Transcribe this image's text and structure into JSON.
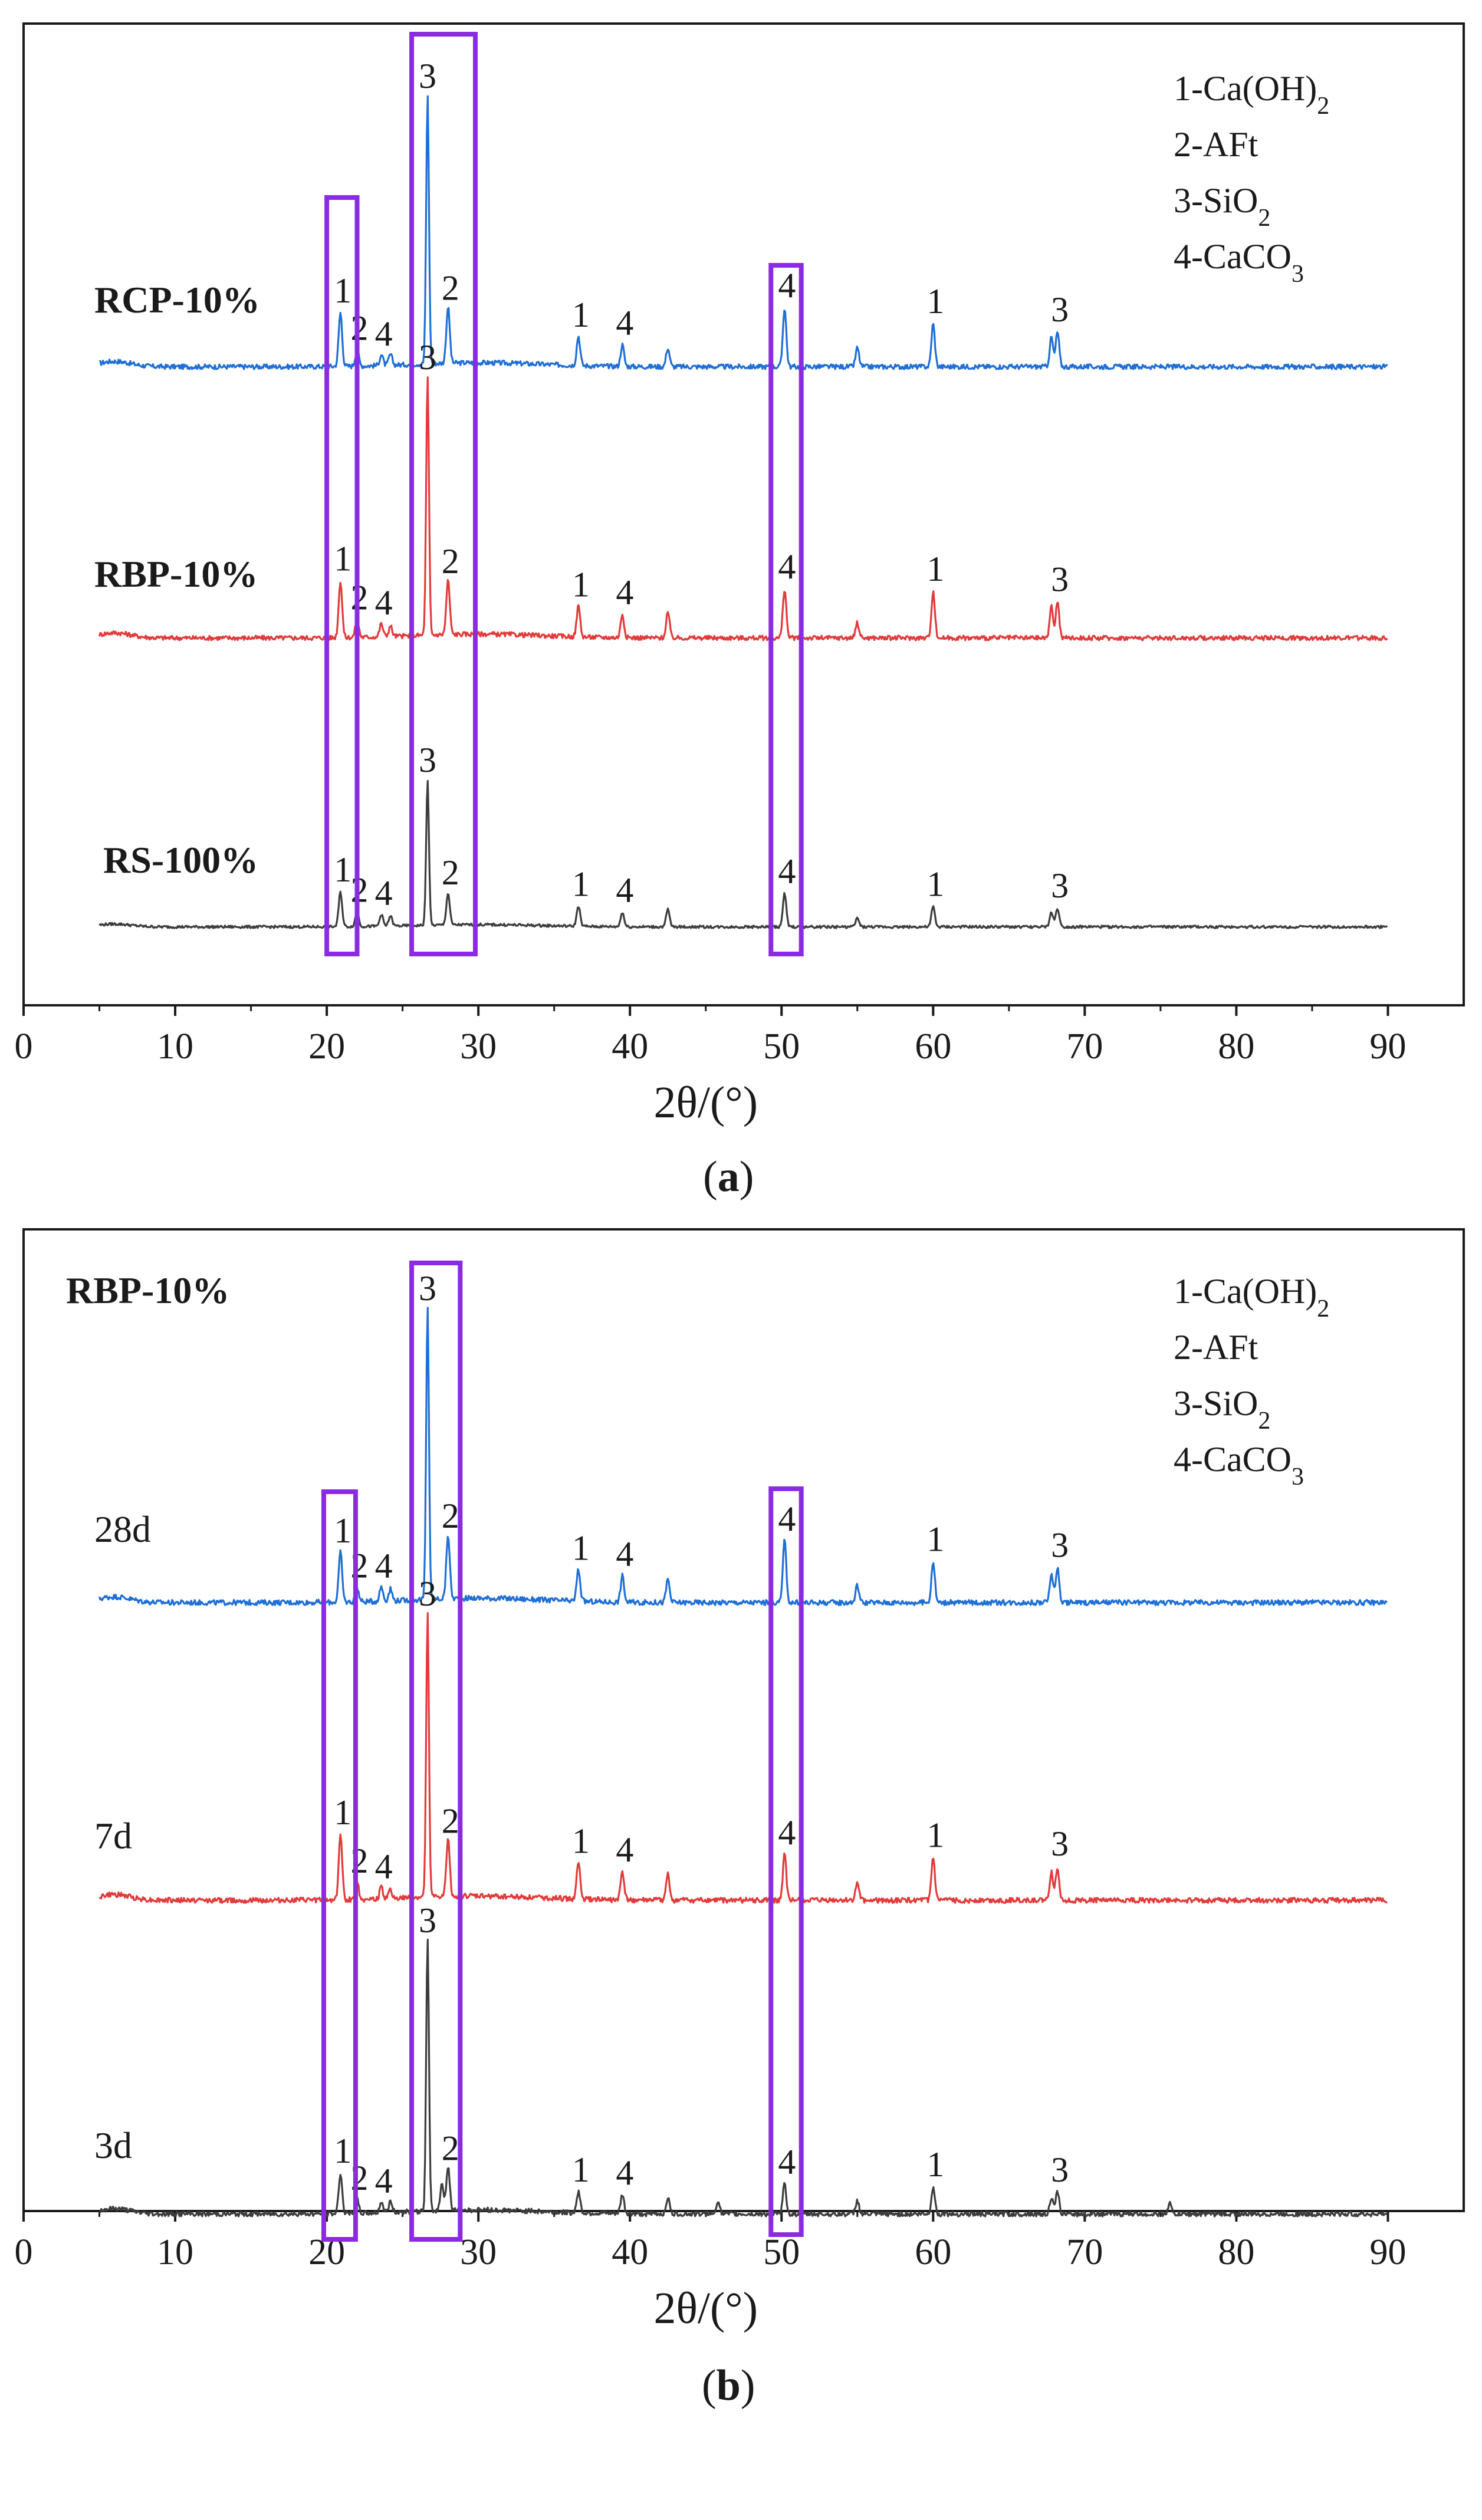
{
  "chart_data": [
    {
      "panel": "a",
      "type": "line",
      "caption_open": "(",
      "caption_letter": "a",
      "caption_close": ")",
      "xlabel": "2θ/(°)",
      "xlim": [
        0,
        95
      ],
      "x_ticks": [
        0,
        10,
        20,
        30,
        40,
        50,
        60,
        70,
        80,
        90
      ],
      "grid": false,
      "legend": [
        "1-Ca(OH)₂",
        "2-AFt",
        "3-SiO₂",
        "4-CaCO₃"
      ],
      "highlight_regions": [
        [
          20.0,
          22.0
        ],
        [
          25.6,
          29.8
        ],
        [
          49.3,
          51.3
        ]
      ],
      "series": [
        {
          "name": "RCP-10%",
          "color": "#1f6fd6",
          "bold": true,
          "peaks": [
            {
              "x": 20.9,
              "h": 0.2,
              "label": "1"
            },
            {
              "x": 22.0,
              "h": 0.06,
              "label": "2"
            },
            {
              "x": 23.6,
              "h": 0.04,
              "label": "4"
            },
            {
              "x": 24.2,
              "h": 0.04,
              "label": ""
            },
            {
              "x": 26.65,
              "h": 1.0,
              "label": "3"
            },
            {
              "x": 28.0,
              "h": 0.21,
              "label": "2"
            },
            {
              "x": 36.6,
              "h": 0.11,
              "label": "1"
            },
            {
              "x": 39.5,
              "h": 0.08,
              "label": "4"
            },
            {
              "x": 42.5,
              "h": 0.07,
              "label": ""
            },
            {
              "x": 50.2,
              "h": 0.22,
              "label": "4"
            },
            {
              "x": 55.0,
              "h": 0.07,
              "label": ""
            },
            {
              "x": 60.0,
              "h": 0.16,
              "label": "1"
            },
            {
              "x": 67.8,
              "h": 0.11,
              "label": ""
            },
            {
              "x": 68.2,
              "h": 0.13,
              "label": "3"
            }
          ]
        },
        {
          "name": "RBP-10%",
          "color": "#e23b3b",
          "bold": true,
          "peaks": [
            {
              "x": 20.9,
              "h": 0.22,
              "label": "1"
            },
            {
              "x": 22.0,
              "h": 0.07,
              "label": "2"
            },
            {
              "x": 23.6,
              "h": 0.05,
              "label": "4"
            },
            {
              "x": 24.2,
              "h": 0.04,
              "label": ""
            },
            {
              "x": 26.65,
              "h": 1.0,
              "label": "3"
            },
            {
              "x": 28.0,
              "h": 0.21,
              "label": "2"
            },
            {
              "x": 36.6,
              "h": 0.12,
              "label": "1"
            },
            {
              "x": 39.5,
              "h": 0.09,
              "label": "4"
            },
            {
              "x": 42.5,
              "h": 0.1,
              "label": ""
            },
            {
              "x": 50.2,
              "h": 0.19,
              "label": "4"
            },
            {
              "x": 55.0,
              "h": 0.06,
              "label": ""
            },
            {
              "x": 60.0,
              "h": 0.18,
              "label": "1"
            },
            {
              "x": 67.8,
              "h": 0.12,
              "label": ""
            },
            {
              "x": 68.2,
              "h": 0.14,
              "label": "3"
            }
          ]
        },
        {
          "name": "RS-100%",
          "color": "#3d3d3d",
          "bold": true,
          "peaks": [
            {
              "x": 20.9,
              "h": 0.24,
              "label": "1"
            },
            {
              "x": 22.0,
              "h": 0.1,
              "label": "2"
            },
            {
              "x": 23.6,
              "h": 0.08,
              "label": "4"
            },
            {
              "x": 24.2,
              "h": 0.07,
              "label": ""
            },
            {
              "x": 26.65,
              "h": 1.0,
              "label": "3"
            },
            {
              "x": 28.0,
              "h": 0.22,
              "label": "2"
            },
            {
              "x": 36.6,
              "h": 0.14,
              "label": "1"
            },
            {
              "x": 39.5,
              "h": 0.1,
              "label": "4"
            },
            {
              "x": 42.5,
              "h": 0.12,
              "label": ""
            },
            {
              "x": 50.2,
              "h": 0.23,
              "label": "4"
            },
            {
              "x": 55.0,
              "h": 0.06,
              "label": ""
            },
            {
              "x": 60.0,
              "h": 0.14,
              "label": "1"
            },
            {
              "x": 67.8,
              "h": 0.1,
              "label": ""
            },
            {
              "x": 68.2,
              "h": 0.13,
              "label": "3"
            }
          ]
        }
      ]
    },
    {
      "panel": "b",
      "type": "line",
      "caption_open": "(",
      "caption_letter": "b",
      "caption_close": ")",
      "xlabel": "2θ/(°)",
      "xlim": [
        0,
        95
      ],
      "x_ticks": [
        0,
        10,
        20,
        30,
        40,
        50,
        60,
        70,
        80,
        90
      ],
      "grid": false,
      "title": "RBP-10%",
      "legend": [
        "1-Ca(OH)₂",
        "2-AFt",
        "3-SiO₂",
        "4-CaCO₃"
      ],
      "highlight_regions": [
        [
          19.8,
          21.9
        ],
        [
          25.6,
          28.8
        ],
        [
          49.3,
          51.3
        ]
      ],
      "series": [
        {
          "name": "28d",
          "color": "#1f6fd6",
          "bold": false,
          "peaks": [
            {
              "x": 20.9,
              "h": 0.17,
              "label": "1"
            },
            {
              "x": 22.0,
              "h": 0.05,
              "label": "2"
            },
            {
              "x": 23.6,
              "h": 0.05,
              "label": "4"
            },
            {
              "x": 24.2,
              "h": 0.04,
              "label": ""
            },
            {
              "x": 26.65,
              "h": 1.0,
              "label": "3"
            },
            {
              "x": 28.0,
              "h": 0.22,
              "label": "2"
            },
            {
              "x": 36.6,
              "h": 0.11,
              "label": "1"
            },
            {
              "x": 39.5,
              "h": 0.09,
              "label": "4"
            },
            {
              "x": 42.5,
              "h": 0.08,
              "label": ""
            },
            {
              "x": 50.2,
              "h": 0.21,
              "label": "4"
            },
            {
              "x": 55.0,
              "h": 0.06,
              "label": ""
            },
            {
              "x": 60.0,
              "h": 0.14,
              "label": "1"
            },
            {
              "x": 67.8,
              "h": 0.1,
              "label": ""
            },
            {
              "x": 68.2,
              "h": 0.12,
              "label": "3"
            }
          ]
        },
        {
          "name": "7d",
          "color": "#e23b3b",
          "bold": false,
          "peaks": [
            {
              "x": 20.9,
              "h": 0.23,
              "label": "1"
            },
            {
              "x": 22.0,
              "h": 0.06,
              "label": "2"
            },
            {
              "x": 23.6,
              "h": 0.04,
              "label": "4"
            },
            {
              "x": 24.2,
              "h": 0.03,
              "label": ""
            },
            {
              "x": 26.65,
              "h": 1.0,
              "label": "3"
            },
            {
              "x": 28.0,
              "h": 0.2,
              "label": "2"
            },
            {
              "x": 36.6,
              "h": 0.13,
              "label": "1"
            },
            {
              "x": 39.5,
              "h": 0.1,
              "label": "4"
            },
            {
              "x": 42.5,
              "h": 0.09,
              "label": ""
            },
            {
              "x": 50.2,
              "h": 0.16,
              "label": "4"
            },
            {
              "x": 55.0,
              "h": 0.06,
              "label": ""
            },
            {
              "x": 60.0,
              "h": 0.15,
              "label": "1"
            },
            {
              "x": 67.8,
              "h": 0.1,
              "label": ""
            },
            {
              "x": 68.2,
              "h": 0.12,
              "label": "3"
            }
          ]
        },
        {
          "name": "3d",
          "color": "#3d3d3d",
          "bold": false,
          "peaks": [
            {
              "x": 20.9,
              "h": 0.15,
              "label": "1"
            },
            {
              "x": 22.0,
              "h": 0.05,
              "label": "2"
            },
            {
              "x": 23.6,
              "h": 0.04,
              "label": "4"
            },
            {
              "x": 24.2,
              "h": 0.04,
              "label": ""
            },
            {
              "x": 26.65,
              "h": 1.0,
              "label": "3"
            },
            {
              "x": 27.6,
              "h": 0.1,
              "label": ""
            },
            {
              "x": 28.0,
              "h": 0.16,
              "label": "2"
            },
            {
              "x": 36.6,
              "h": 0.08,
              "label": "1"
            },
            {
              "x": 39.5,
              "h": 0.07,
              "label": "4"
            },
            {
              "x": 42.5,
              "h": 0.06,
              "label": ""
            },
            {
              "x": 45.8,
              "h": 0.05,
              "label": ""
            },
            {
              "x": 50.2,
              "h": 0.11,
              "label": "4"
            },
            {
              "x": 55.0,
              "h": 0.05,
              "label": ""
            },
            {
              "x": 60.0,
              "h": 0.1,
              "label": "1"
            },
            {
              "x": 67.8,
              "h": 0.06,
              "label": ""
            },
            {
              "x": 68.2,
              "h": 0.08,
              "label": "3"
            },
            {
              "x": 75.6,
              "h": 0.04,
              "label": ""
            }
          ]
        }
      ]
    }
  ]
}
